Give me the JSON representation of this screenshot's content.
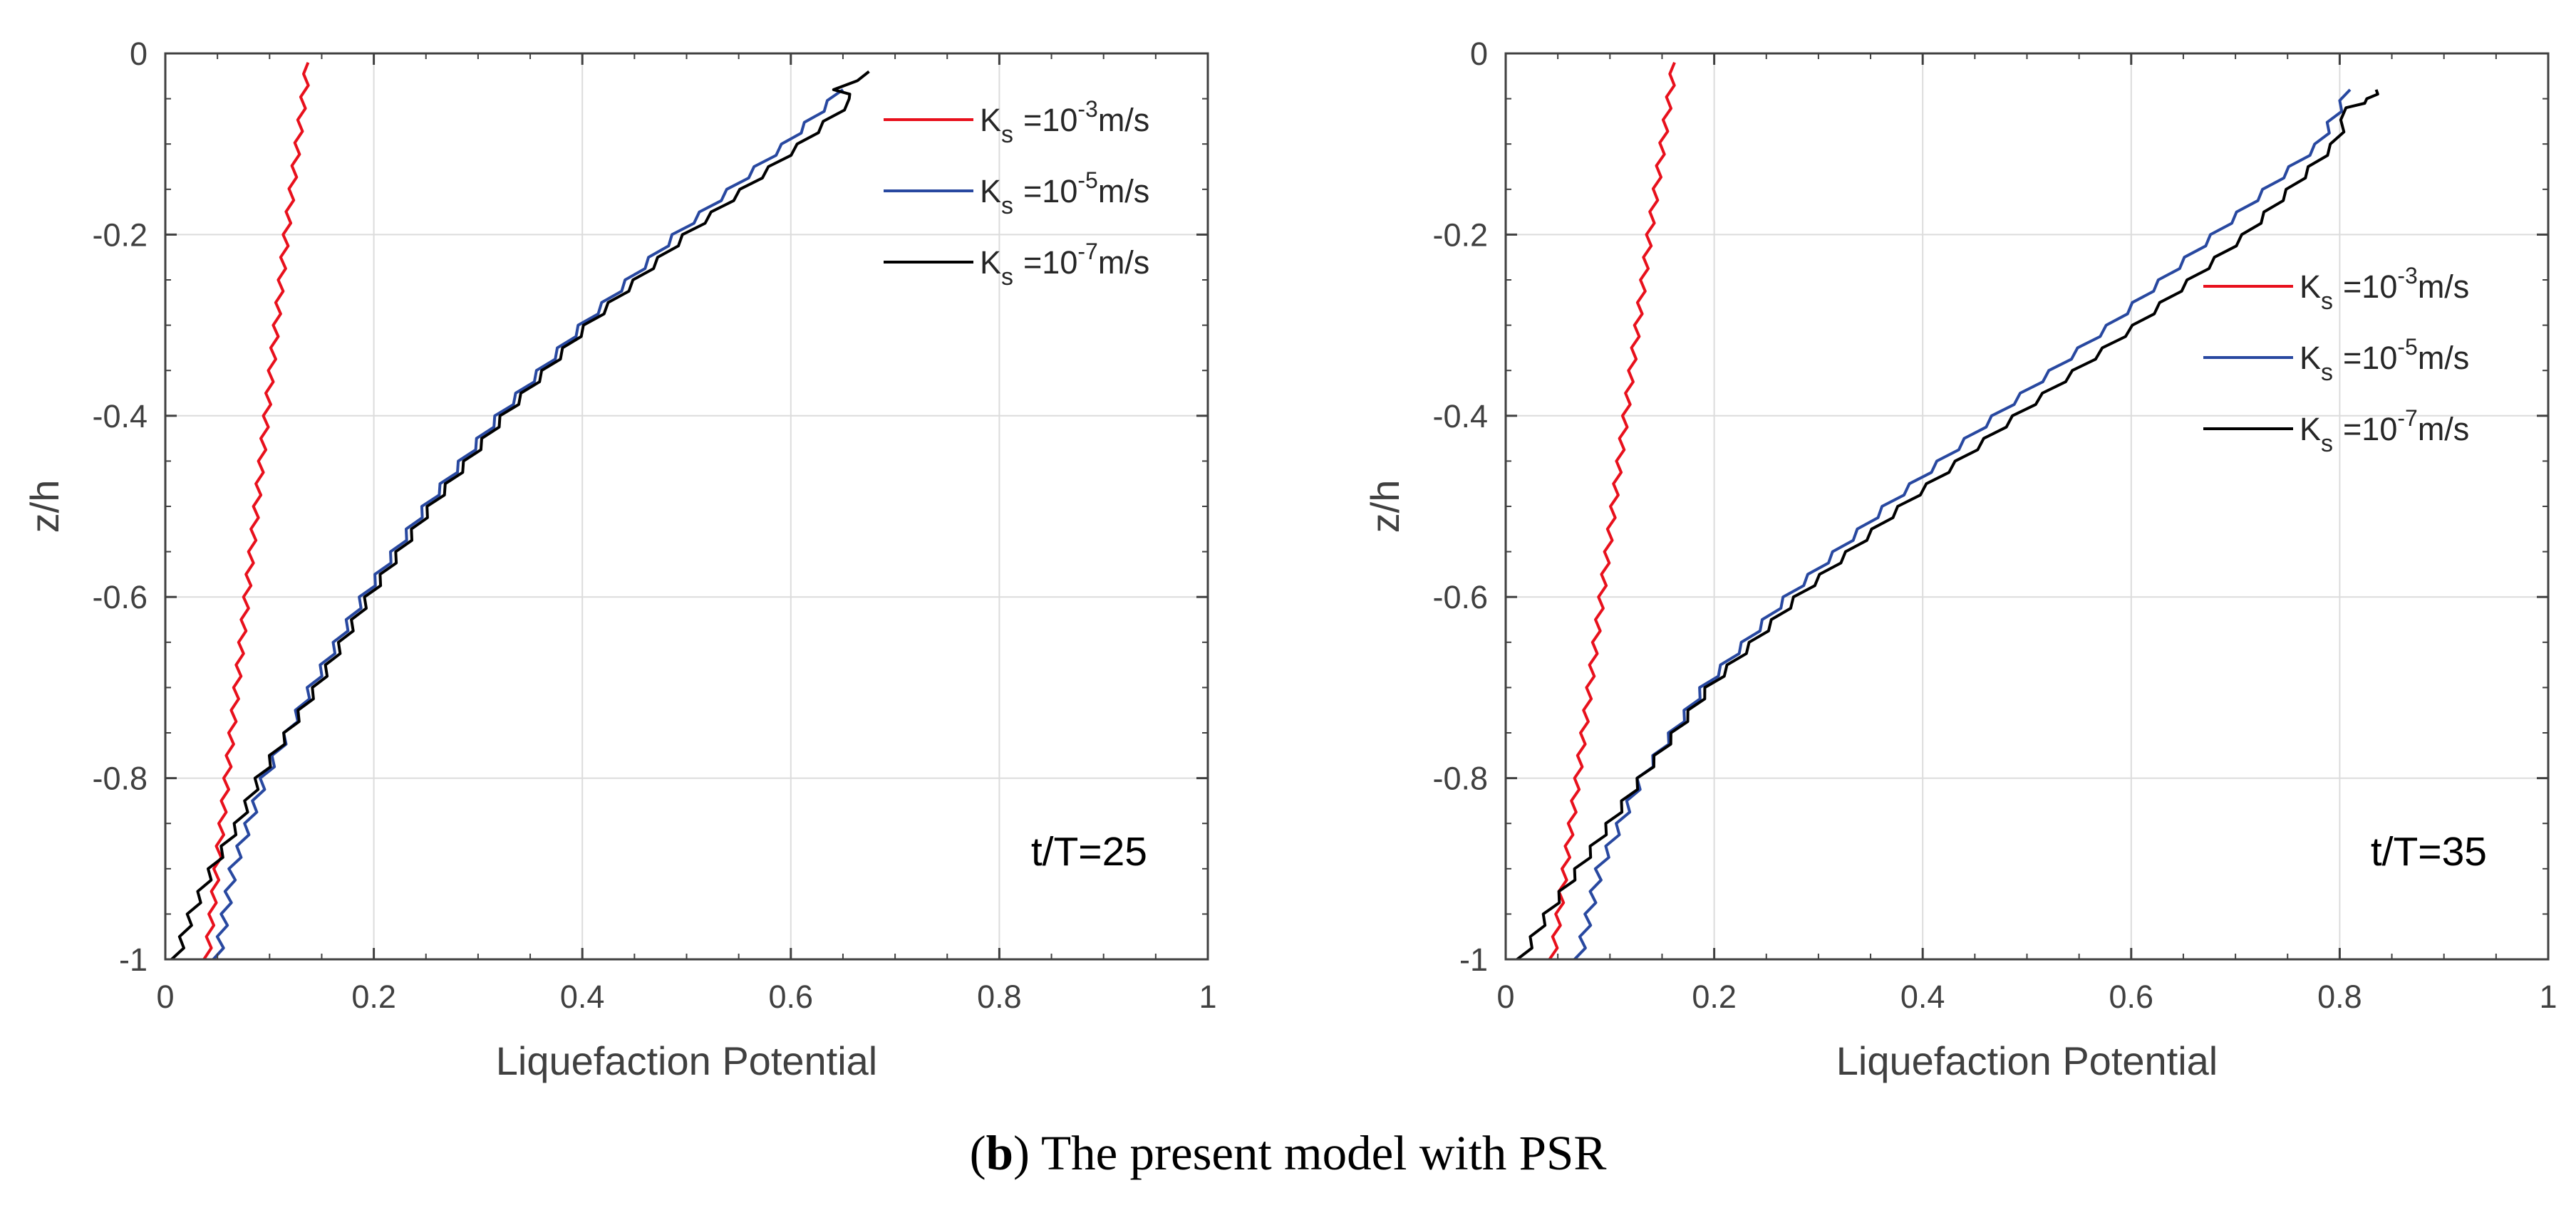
{
  "caption": {
    "label": "b",
    "text": "The present model with PSR"
  },
  "colors": {
    "red": "#e8101c",
    "blue": "#2848a0",
    "black": "#000000",
    "grid": "#dcdcdc",
    "axis": "#404040"
  },
  "chart_data": [
    {
      "type": "line",
      "annotation": "t/T=25",
      "xlabel": "Liquefaction Potential",
      "ylabel": "z/h",
      "xlim": [
        0,
        1
      ],
      "ylim": [
        -1,
        0
      ],
      "xticks": [
        0,
        0.2,
        0.4,
        0.6,
        0.8,
        1
      ],
      "xtick_labels": [
        "0",
        "0.2",
        "0.4",
        "0.6",
        "0.8",
        "1"
      ],
      "yticks": [
        0,
        -0.2,
        -0.4,
        -0.6,
        -0.8,
        -1
      ],
      "ytick_labels": [
        "0",
        "-0.2",
        "-0.4",
        "-0.6",
        "-0.8",
        "-1"
      ],
      "grid": true,
      "legend_position": "top-right",
      "series": [
        {
          "name": "Ks =10^-3 m/s",
          "label_main": "K",
          "label_sub": "s",
          "label_eq": "=10",
          "label_exp": "-3",
          "label_unit": "m/s",
          "color": "#e8101c",
          "z": [
            -1,
            -0.8,
            -0.6,
            -0.4,
            -0.2,
            -0.01
          ],
          "lp": [
            0.04,
            0.059,
            0.078,
            0.097,
            0.116,
            0.137
          ]
        },
        {
          "name": "Ks =10^-5 m/s",
          "label_main": "K",
          "label_sub": "s",
          "label_eq": "=10",
          "label_exp": "-5",
          "label_unit": "m/s",
          "color": "#2848a0",
          "z": [
            -1,
            -0.9,
            -0.8,
            -0.7,
            -0.6,
            -0.5,
            -0.4,
            -0.3,
            -0.2,
            -0.1,
            -0.04
          ],
          "lp": [
            0.05,
            0.065,
            0.095,
            0.14,
            0.19,
            0.25,
            0.32,
            0.4,
            0.49,
            0.595,
            0.65
          ]
        },
        {
          "name": "Ks =10^-7 m/s",
          "label_main": "K",
          "label_sub": "s",
          "label_eq": "=10",
          "label_exp": "-7",
          "label_unit": "m/s",
          "color": "#000000",
          "z": [
            -1,
            -0.95,
            -0.9,
            -0.85,
            -0.8,
            -0.7,
            -0.6,
            -0.5,
            -0.4,
            -0.3,
            -0.2,
            -0.1,
            -0.05,
            -0.04,
            -0.02
          ],
          "lp": [
            0.01,
            0.025,
            0.045,
            0.07,
            0.09,
            0.145,
            0.195,
            0.255,
            0.325,
            0.405,
            0.5,
            0.61,
            0.66,
            0.645,
            0.675
          ]
        }
      ]
    },
    {
      "type": "line",
      "annotation": "t/T=35",
      "xlabel": "Liquefaction Potential",
      "ylabel": "z/h",
      "xlim": [
        0,
        1
      ],
      "ylim": [
        -1,
        0
      ],
      "xticks": [
        0,
        0.2,
        0.4,
        0.6,
        0.8,
        1
      ],
      "xtick_labels": [
        "0",
        "0.2",
        "0.4",
        "0.6",
        "0.8",
        "1"
      ],
      "yticks": [
        0,
        -0.2,
        -0.4,
        -0.6,
        -0.8,
        -1
      ],
      "ytick_labels": [
        "0",
        "-0.2",
        "-0.4",
        "-0.6",
        "-0.8",
        "-1"
      ],
      "grid": true,
      "legend_position": "right",
      "series": [
        {
          "name": "Ks =10^-3 m/s",
          "label_main": "K",
          "label_sub": "s",
          "label_eq": "=10",
          "label_exp": "-3",
          "label_unit": "m/s",
          "color": "#e8101c",
          "z": [
            -1,
            -0.8,
            -0.6,
            -0.4,
            -0.2,
            -0.01
          ],
          "lp": [
            0.045,
            0.069,
            0.092,
            0.115,
            0.138,
            0.162
          ]
        },
        {
          "name": "Ks =10^-5 m/s",
          "label_main": "K",
          "label_sub": "s",
          "label_eq": "=10",
          "label_exp": "-5",
          "label_unit": "m/s",
          "color": "#2848a0",
          "z": [
            -1,
            -0.9,
            -0.8,
            -0.7,
            -0.6,
            -0.5,
            -0.4,
            -0.3,
            -0.2,
            -0.1,
            -0.04
          ],
          "lp": [
            0.07,
            0.09,
            0.13,
            0.19,
            0.27,
            0.365,
            0.47,
            0.58,
            0.68,
            0.78,
            0.81
          ]
        },
        {
          "name": "Ks =10^-7 m/s",
          "label_main": "K",
          "label_sub": "s",
          "label_eq": "=10",
          "label_exp": "-7",
          "label_unit": "m/s",
          "color": "#000000",
          "z": [
            -1,
            -0.95,
            -0.9,
            -0.85,
            -0.8,
            -0.7,
            -0.6,
            -0.5,
            -0.4,
            -0.3,
            -0.2,
            -0.1,
            -0.06,
            -0.05,
            -0.04
          ],
          "lp": [
            0.015,
            0.04,
            0.07,
            0.1,
            0.13,
            0.195,
            0.28,
            0.38,
            0.49,
            0.605,
            0.71,
            0.795,
            0.81,
            0.83,
            0.835
          ]
        }
      ]
    }
  ]
}
